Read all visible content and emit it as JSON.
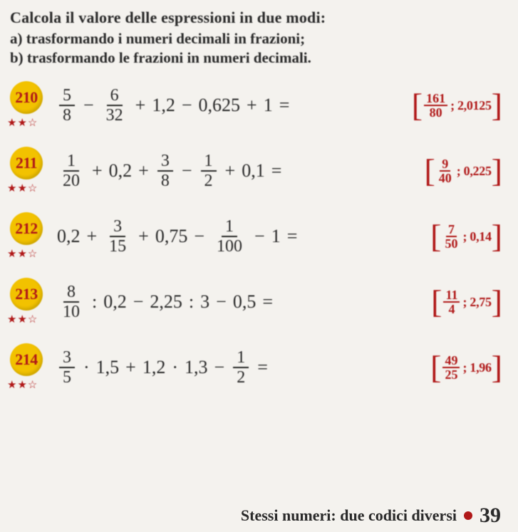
{
  "header": {
    "title": "Calcola il valore delle espressioni in due modi:",
    "line_a": "a)  trasformando i numeri decimali in frazioni;",
    "line_b": "b)  trasformando le frazioni in numeri decimali."
  },
  "problems": [
    {
      "num": "210",
      "stars": "★★☆",
      "tokens": [
        {
          "t": "frac",
          "n": "5",
          "d": "8"
        },
        {
          "t": "op",
          "v": "−"
        },
        {
          "t": "frac",
          "n": "6",
          "d": "32"
        },
        {
          "t": "op",
          "v": "+"
        },
        {
          "t": "txt",
          "v": "1,2"
        },
        {
          "t": "op",
          "v": "−"
        },
        {
          "t": "txt",
          "v": "0,625"
        },
        {
          "t": "op",
          "v": "+"
        },
        {
          "t": "txt",
          "v": "1"
        },
        {
          "t": "op",
          "v": "="
        }
      ],
      "ans": {
        "n": "161",
        "d": "80",
        "dec": "; 2,0125"
      }
    },
    {
      "num": "211",
      "stars": "★★☆",
      "tokens": [
        {
          "t": "frac",
          "n": "1",
          "d": "20"
        },
        {
          "t": "op",
          "v": "+"
        },
        {
          "t": "txt",
          "v": "0,2"
        },
        {
          "t": "op",
          "v": "+"
        },
        {
          "t": "frac",
          "n": "3",
          "d": "8"
        },
        {
          "t": "op",
          "v": "−"
        },
        {
          "t": "frac",
          "n": "1",
          "d": "2"
        },
        {
          "t": "op",
          "v": "+"
        },
        {
          "t": "txt",
          "v": "0,1"
        },
        {
          "t": "op",
          "v": "="
        }
      ],
      "ans": {
        "n": "9",
        "d": "40",
        "dec": "; 0,225"
      }
    },
    {
      "num": "212",
      "stars": "★★☆",
      "tokens": [
        {
          "t": "txt",
          "v": "0,2"
        },
        {
          "t": "op",
          "v": "+"
        },
        {
          "t": "frac",
          "n": "3",
          "d": "15"
        },
        {
          "t": "op",
          "v": "+"
        },
        {
          "t": "txt",
          "v": "0,75"
        },
        {
          "t": "op",
          "v": "−"
        },
        {
          "t": "frac",
          "n": "1",
          "d": "100"
        },
        {
          "t": "op",
          "v": "−"
        },
        {
          "t": "txt",
          "v": "1"
        },
        {
          "t": "op",
          "v": "="
        }
      ],
      "ans": {
        "n": "7",
        "d": "50",
        "dec": "; 0,14"
      }
    },
    {
      "num": "213",
      "stars": "★★☆",
      "tokens": [
        {
          "t": "frac",
          "n": "8",
          "d": "10"
        },
        {
          "t": "op",
          "v": ":"
        },
        {
          "t": "txt",
          "v": "0,2"
        },
        {
          "t": "op",
          "v": "−"
        },
        {
          "t": "txt",
          "v": "2,25"
        },
        {
          "t": "op",
          "v": ":"
        },
        {
          "t": "txt",
          "v": "3"
        },
        {
          "t": "op",
          "v": "−"
        },
        {
          "t": "txt",
          "v": "0,5"
        },
        {
          "t": "op",
          "v": "="
        }
      ],
      "ans": {
        "n": "11",
        "d": "4",
        "dec": "; 2,75"
      }
    },
    {
      "num": "214",
      "stars": "★★☆",
      "tokens": [
        {
          "t": "frac",
          "n": "3",
          "d": "5"
        },
        {
          "t": "op",
          "v": "·"
        },
        {
          "t": "txt",
          "v": "1,5"
        },
        {
          "t": "op",
          "v": "+"
        },
        {
          "t": "txt",
          "v": "1,2"
        },
        {
          "t": "op",
          "v": "·"
        },
        {
          "t": "txt",
          "v": "1,3"
        },
        {
          "t": "op",
          "v": "−"
        },
        {
          "t": "frac",
          "n": "1",
          "d": "2"
        },
        {
          "t": "op",
          "v": "="
        }
      ],
      "ans": {
        "n": "49",
        "d": "25",
        "dec": "; 1,96"
      }
    }
  ],
  "footer": {
    "text": "Stessi numeri: due codici diversi",
    "page": "39"
  },
  "colors": {
    "badge_bg": "#f2c200",
    "accent": "#b01818",
    "text": "#2a2a2a",
    "page_bg": "#f4f2ee"
  }
}
